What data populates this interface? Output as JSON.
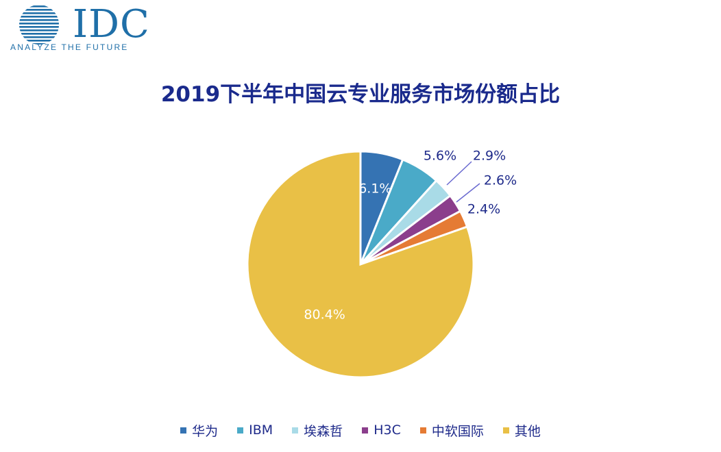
{
  "logo": {
    "wordmark": "IDC",
    "tagline": "ANALYZE THE FUTURE",
    "color": "#1f6fa8"
  },
  "chart_data": {
    "type": "pie",
    "title": "2019下半年中国云专业服务市场份额占比",
    "slices": [
      {
        "label": "华为",
        "value": 6.1,
        "display": "6.1%",
        "color": "#3573b3"
      },
      {
        "label": "IBM",
        "value": 5.6,
        "display": "5.6%",
        "color": "#4aaac8"
      },
      {
        "label": "埃森哲",
        "value": 2.9,
        "display": "2.9%",
        "color": "#a9dbe7"
      },
      {
        "label": "H3C",
        "value": 2.6,
        "display": "2.6%",
        "color": "#8b3e8c"
      },
      {
        "label": "中软国际",
        "value": 2.4,
        "display": "2.4%",
        "color": "#e57b34"
      },
      {
        "label": "其他",
        "value": 80.4,
        "display": "80.4%",
        "color": "#e9c046"
      }
    ],
    "start_angle": "12 o'clock, clockwise",
    "legend_position": "bottom"
  }
}
